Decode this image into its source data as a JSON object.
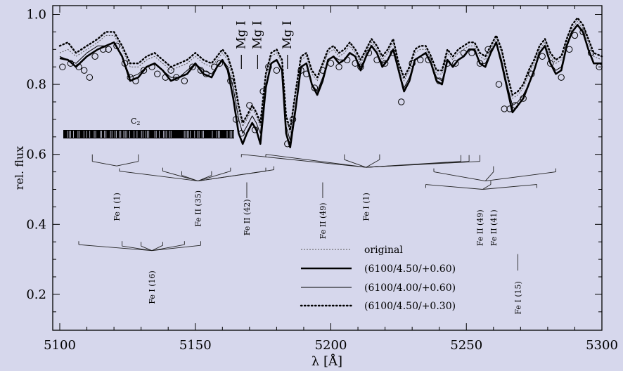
{
  "chart_data": {
    "type": "line",
    "xlabel": "λ [Å]",
    "ylabel": "rel. flux",
    "xlim": [
      5100,
      5300
    ],
    "ylim": [
      0.1,
      1.02
    ],
    "xticks": [
      5100,
      5150,
      5200,
      5250,
      5300
    ],
    "yticks": [
      0.2,
      0.4,
      0.6,
      0.8,
      1.0
    ],
    "background": "#d6d7ec",
    "legend": {
      "placement": "bottom-center",
      "entries": [
        {
          "label": "original",
          "style": "dotted-thin"
        },
        {
          "label": "(6100/4.50/+0.60)",
          "style": "solid-thick"
        },
        {
          "label": "(6100/4.00/+0.60)",
          "style": "solid-thin"
        },
        {
          "label": "(6100/4.50/+0.30)",
          "style": "dotted-thick"
        }
      ]
    },
    "series": [
      {
        "style": "solid-thick",
        "x": [
          5100,
          5103,
          5106,
          5110,
          5114,
          5117,
          5120,
          5123,
          5126,
          5129,
          5132,
          5135,
          5138,
          5141,
          5144,
          5147,
          5150,
          5153,
          5156,
          5158,
          5160,
          5162,
          5164,
          5166,
          5167.5,
          5169,
          5171,
          5172.5,
          5174,
          5176,
          5178,
          5180,
          5182,
          5183.5,
          5185,
          5187,
          5189,
          5191,
          5193,
          5195,
          5197,
          5199,
          5201,
          5203,
          5205,
          5207,
          5209,
          5211,
          5213,
          5215,
          5217,
          5219,
          5221,
          5223,
          5225,
          5227,
          5229,
          5231,
          5233,
          5235,
          5237,
          5239,
          5241,
          5243,
          5245,
          5247,
          5249,
          5251,
          5253,
          5255,
          5257,
          5259,
          5261,
          5263,
          5265,
          5267,
          5269,
          5271,
          5273,
          5275,
          5277,
          5279,
          5281,
          5283,
          5285,
          5287,
          5289,
          5291,
          5293,
          5295,
          5297,
          5300
        ],
        "y": [
          0.875,
          0.87,
          0.85,
          0.88,
          0.9,
          0.91,
          0.92,
          0.88,
          0.81,
          0.82,
          0.85,
          0.86,
          0.84,
          0.81,
          0.82,
          0.83,
          0.86,
          0.83,
          0.82,
          0.85,
          0.87,
          0.84,
          0.76,
          0.66,
          0.63,
          0.66,
          0.69,
          0.67,
          0.63,
          0.79,
          0.86,
          0.87,
          0.84,
          0.66,
          0.62,
          0.73,
          0.85,
          0.86,
          0.8,
          0.77,
          0.81,
          0.87,
          0.88,
          0.86,
          0.87,
          0.89,
          0.88,
          0.84,
          0.88,
          0.91,
          0.89,
          0.85,
          0.87,
          0.9,
          0.84,
          0.78,
          0.81,
          0.87,
          0.88,
          0.89,
          0.86,
          0.81,
          0.8,
          0.87,
          0.85,
          0.87,
          0.88,
          0.9,
          0.9,
          0.86,
          0.85,
          0.89,
          0.92,
          0.86,
          0.79,
          0.72,
          0.74,
          0.76,
          0.8,
          0.84,
          0.89,
          0.91,
          0.86,
          0.83,
          0.84,
          0.91,
          0.95,
          0.97,
          0.95,
          0.9,
          0.86,
          0.86
        ]
      },
      {
        "style": "solid-thin",
        "x": [
          5100,
          5103,
          5106,
          5110,
          5114,
          5117,
          5120,
          5123,
          5126,
          5129,
          5132,
          5135,
          5138,
          5141,
          5144,
          5147,
          5150,
          5153,
          5156,
          5158,
          5160,
          5162,
          5164,
          5166,
          5167.5,
          5169,
          5171,
          5172.5,
          5174,
          5176,
          5178,
          5180,
          5182,
          5183.5,
          5185,
          5187,
          5189,
          5191,
          5193,
          5195,
          5197,
          5199,
          5201,
          5203,
          5205,
          5207,
          5209,
          5211,
          5213,
          5215,
          5217,
          5219,
          5221,
          5223,
          5225,
          5227,
          5229,
          5231,
          5233,
          5235,
          5237,
          5239,
          5241,
          5243,
          5245,
          5247,
          5249,
          5251,
          5253,
          5255,
          5257,
          5259,
          5261,
          5263,
          5265,
          5267,
          5269,
          5271,
          5273,
          5275,
          5277,
          5279,
          5281,
          5283,
          5285,
          5287,
          5289,
          5291,
          5293,
          5295,
          5297,
          5300
        ],
        "y": [
          0.88,
          0.87,
          0.86,
          0.89,
          0.91,
          0.91,
          0.92,
          0.88,
          0.82,
          0.83,
          0.85,
          0.86,
          0.84,
          0.82,
          0.82,
          0.84,
          0.86,
          0.84,
          0.83,
          0.85,
          0.87,
          0.85,
          0.79,
          0.7,
          0.66,
          0.68,
          0.71,
          0.69,
          0.66,
          0.8,
          0.86,
          0.87,
          0.84,
          0.68,
          0.64,
          0.74,
          0.85,
          0.86,
          0.8,
          0.78,
          0.82,
          0.87,
          0.88,
          0.87,
          0.87,
          0.89,
          0.88,
          0.85,
          0.88,
          0.91,
          0.89,
          0.86,
          0.87,
          0.9,
          0.84,
          0.79,
          0.82,
          0.87,
          0.88,
          0.89,
          0.86,
          0.82,
          0.81,
          0.87,
          0.85,
          0.87,
          0.88,
          0.9,
          0.9,
          0.86,
          0.86,
          0.89,
          0.92,
          0.87,
          0.8,
          0.74,
          0.75,
          0.77,
          0.8,
          0.84,
          0.89,
          0.91,
          0.86,
          0.84,
          0.85,
          0.91,
          0.95,
          0.97,
          0.95,
          0.9,
          0.86,
          0.86
        ]
      },
      {
        "style": "dotted-thick",
        "x": [
          5100,
          5103,
          5106,
          5110,
          5114,
          5117,
          5120,
          5123,
          5126,
          5129,
          5132,
          5135,
          5138,
          5141,
          5144,
          5147,
          5150,
          5153,
          5156,
          5158,
          5160,
          5162,
          5164,
          5166,
          5167.5,
          5169,
          5171,
          5172.5,
          5174,
          5176,
          5178,
          5180,
          5182,
          5183.5,
          5185,
          5187,
          5189,
          5191,
          5193,
          5195,
          5197,
          5199,
          5201,
          5203,
          5205,
          5207,
          5209,
          5211,
          5213,
          5215,
          5217,
          5219,
          5221,
          5223,
          5225,
          5227,
          5229,
          5231,
          5233,
          5235,
          5237,
          5239,
          5241,
          5243,
          5245,
          5247,
          5249,
          5251,
          5253,
          5255,
          5257,
          5259,
          5261,
          5263,
          5265,
          5267,
          5269,
          5271,
          5273,
          5275,
          5277,
          5279,
          5281,
          5283,
          5285,
          5287,
          5289,
          5291,
          5293,
          5295,
          5297,
          5300
        ],
        "y": [
          0.91,
          0.92,
          0.89,
          0.91,
          0.93,
          0.95,
          0.95,
          0.91,
          0.86,
          0.86,
          0.88,
          0.89,
          0.87,
          0.85,
          0.86,
          0.87,
          0.89,
          0.87,
          0.86,
          0.88,
          0.9,
          0.88,
          0.83,
          0.74,
          0.69,
          0.71,
          0.74,
          0.72,
          0.69,
          0.83,
          0.89,
          0.9,
          0.87,
          0.71,
          0.67,
          0.78,
          0.88,
          0.89,
          0.84,
          0.82,
          0.86,
          0.9,
          0.91,
          0.89,
          0.9,
          0.92,
          0.9,
          0.87,
          0.9,
          0.93,
          0.91,
          0.88,
          0.9,
          0.93,
          0.86,
          0.82,
          0.85,
          0.9,
          0.91,
          0.91,
          0.88,
          0.84,
          0.84,
          0.9,
          0.88,
          0.9,
          0.91,
          0.92,
          0.92,
          0.89,
          0.88,
          0.91,
          0.94,
          0.9,
          0.83,
          0.77,
          0.78,
          0.8,
          0.84,
          0.87,
          0.91,
          0.93,
          0.89,
          0.87,
          0.88,
          0.93,
          0.97,
          0.99,
          0.97,
          0.93,
          0.89,
          0.88
        ]
      },
      {
        "style": "dotted-thin",
        "x": [
          5100,
          5103,
          5106,
          5110,
          5114,
          5117,
          5120,
          5123,
          5126,
          5129,
          5132,
          5135,
          5138,
          5141,
          5144,
          5147,
          5150,
          5153,
          5156,
          5158,
          5160,
          5162,
          5164,
          5166,
          5167.5,
          5169,
          5171,
          5172.5,
          5174,
          5176,
          5178,
          5180,
          5182,
          5183.5,
          5185,
          5187,
          5189,
          5191,
          5193,
          5195,
          5197,
          5199,
          5201,
          5203,
          5205,
          5207,
          5209,
          5211,
          5213,
          5215,
          5217,
          5219,
          5221,
          5223,
          5225,
          5227,
          5229,
          5231,
          5233,
          5235,
          5237,
          5239,
          5241,
          5243,
          5245,
          5247,
          5249,
          5251,
          5253,
          5255,
          5257,
          5259,
          5261,
          5263,
          5265,
          5267,
          5269,
          5271,
          5273,
          5275,
          5277,
          5279,
          5281,
          5283,
          5285,
          5287,
          5289,
          5291,
          5293,
          5295,
          5297,
          5300
        ],
        "y": [
          0.89,
          0.9,
          0.88,
          0.9,
          0.92,
          0.94,
          0.94,
          0.9,
          0.85,
          0.85,
          0.87,
          0.88,
          0.86,
          0.84,
          0.85,
          0.86,
          0.88,
          0.86,
          0.85,
          0.87,
          0.89,
          0.87,
          0.81,
          0.72,
          0.68,
          0.7,
          0.73,
          0.71,
          0.68,
          0.82,
          0.88,
          0.89,
          0.86,
          0.7,
          0.66,
          0.77,
          0.87,
          0.88,
          0.83,
          0.81,
          0.85,
          0.89,
          0.9,
          0.88,
          0.89,
          0.91,
          0.89,
          0.86,
          0.89,
          0.92,
          0.9,
          0.87,
          0.89,
          0.92,
          0.85,
          0.81,
          0.84,
          0.89,
          0.9,
          0.9,
          0.87,
          0.83,
          0.83,
          0.89,
          0.87,
          0.89,
          0.9,
          0.91,
          0.91,
          0.88,
          0.87,
          0.9,
          0.93,
          0.89,
          0.82,
          0.76,
          0.77,
          0.79,
          0.83,
          0.86,
          0.9,
          0.92,
          0.88,
          0.86,
          0.87,
          0.92,
          0.96,
          0.98,
          0.96,
          0.92,
          0.88,
          0.87
        ]
      },
      {
        "style": "circles",
        "x": [
          5101,
          5104,
          5107,
          5109,
          5111,
          5113,
          5116,
          5118,
          5121,
          5124,
          5126,
          5128,
          5131,
          5134,
          5136,
          5139,
          5141,
          5143,
          5146,
          5149,
          5152,
          5154,
          5157,
          5159,
          5163,
          5165,
          5167,
          5170,
          5172,
          5175,
          5177,
          5180,
          5184,
          5186,
          5189,
          5191,
          5194,
          5197,
          5200,
          5203,
          5206,
          5209,
          5211,
          5214,
          5217,
          5220,
          5223,
          5226,
          5230,
          5233,
          5236,
          5240,
          5243,
          5246,
          5249,
          5252,
          5255,
          5258,
          5262,
          5264,
          5266,
          5268,
          5271,
          5274,
          5278,
          5281,
          5285,
          5288,
          5290,
          5293,
          5296,
          5299
        ],
        "y": [
          0.85,
          0.86,
          0.85,
          0.84,
          0.82,
          0.88,
          0.9,
          0.9,
          0.91,
          0.86,
          0.82,
          0.81,
          0.84,
          0.85,
          0.83,
          0.82,
          0.84,
          0.82,
          0.81,
          0.85,
          0.84,
          0.83,
          0.85,
          0.86,
          0.81,
          0.7,
          0.66,
          0.74,
          0.67,
          0.78,
          0.85,
          0.84,
          0.63,
          0.7,
          0.84,
          0.83,
          0.79,
          0.84,
          0.86,
          0.85,
          0.87,
          0.86,
          0.85,
          0.89,
          0.87,
          0.86,
          0.89,
          0.75,
          0.86,
          0.87,
          0.87,
          0.81,
          0.86,
          0.86,
          0.89,
          0.89,
          0.86,
          0.9,
          0.8,
          0.73,
          0.73,
          0.74,
          0.76,
          0.83,
          0.88,
          0.86,
          0.82,
          0.9,
          0.94,
          0.95,
          0.89,
          0.85
        ]
      }
    ],
    "annotations": {
      "c2_label": "C",
      "c2_sub": "2",
      "mg_labels": [
        {
          "text": "Mg I",
          "x": 5167
        },
        {
          "text": "Mg I",
          "x": 5173
        },
        {
          "text": "Mg I",
          "x": 5184
        }
      ],
      "multiplets": [
        {
          "text": "Fe I (1)",
          "x": 5121
        },
        {
          "text": "Fe II (35)",
          "x": 5151
        },
        {
          "text": "Fe II (42)",
          "x": 5169
        },
        {
          "text": "Fe II (49)",
          "x": 5197
        },
        {
          "text": "Fe I (1)",
          "x": 5213
        },
        {
          "text": "Fe II (49)",
          "x": 5255
        },
        {
          "text": "Fe II (41)",
          "x": 5260
        },
        {
          "text": "Fe I (16)",
          "x": 5134
        },
        {
          "text": "Fe I (15)",
          "x": 5269
        }
      ]
    }
  }
}
